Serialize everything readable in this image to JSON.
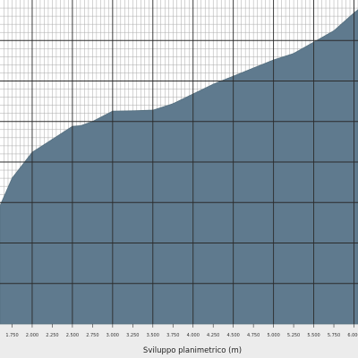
{
  "chart_data": {
    "type": "area",
    "title": "",
    "xlabel": "Sviluppo planimetrico (m)",
    "ylabel": "",
    "x_unit": "m",
    "xlim": [
      1600,
      6050
    ],
    "ylim": [
      0,
      1
    ],
    "grid": true,
    "legend": "none",
    "colors": {
      "fill": "#5f7a8e",
      "grid_major": "#2b2b2b",
      "grid_minor": "#a9a9a9",
      "background": "#ffffff",
      "frame": "#ececec"
    },
    "x_ticks": [
      1750,
      2000,
      2250,
      2500,
      2750,
      3000,
      3250,
      3500,
      3750,
      4000,
      4250,
      4500,
      4750,
      5000,
      5250,
      5500,
      5750,
      6000
    ],
    "x_tick_labels": [
      "1.750",
      "2.000",
      "2.250",
      "2.500",
      "2.750",
      "3.000",
      "3.250",
      "3.500",
      "3.750",
      "4.000",
      "4.250",
      "4.500",
      "4.750",
      "5.000",
      "5.250",
      "5.500",
      "5.750",
      "6.000"
    ],
    "series": [
      {
        "x": [
          1600,
          1750,
          2000,
          2250,
          2500,
          2600,
          2750,
          3000,
          3250,
          3500,
          3750,
          4000,
          4250,
          4500,
          4750,
          5000,
          5250,
          5500,
          5750,
          6000,
          6050
        ],
        "values": [
          0.365,
          0.45,
          0.53,
          0.57,
          0.61,
          0.612,
          0.625,
          0.657,
          0.658,
          0.66,
          0.68,
          0.71,
          0.74,
          0.765,
          0.79,
          0.815,
          0.835,
          0.87,
          0.905,
          0.96,
          0.97
        ]
      }
    ]
  }
}
